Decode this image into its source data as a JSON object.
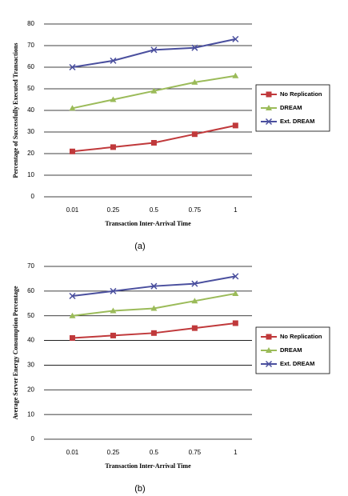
{
  "chart_data": [
    {
      "type": "line",
      "caption": "(a)",
      "x_label": "Transaction Inter-Arrival Time",
      "y_label": "Percentage of Successfully Executed Transactions",
      "categories": [
        "0.01",
        "0.25",
        "0.5",
        "0.75",
        "1"
      ],
      "series": [
        {
          "name": "No Replication",
          "color": "#c0393b",
          "marker": "square",
          "values": [
            21,
            23,
            25,
            29,
            33
          ]
        },
        {
          "name": "DREAM",
          "color": "#9bbb59",
          "marker": "triangle",
          "values": [
            41,
            45,
            49,
            53,
            56
          ]
        },
        {
          "name": "Ext. DREAM",
          "color": "#4a4f9e",
          "marker": "x",
          "values": [
            60,
            63,
            68,
            69,
            73
          ]
        }
      ],
      "ylim": [
        0,
        80
      ],
      "yticks": [
        0,
        10,
        20,
        30,
        40,
        50,
        60,
        70,
        80
      ],
      "grid": true,
      "legend": "right"
    },
    {
      "type": "line",
      "caption": "(b)",
      "x_label": "Transaction Inter-Arrival Time",
      "y_label": "Average Server Energy Consumption Percentage",
      "categories": [
        "0.01",
        "0.25",
        "0.5",
        "0.75",
        "1"
      ],
      "series": [
        {
          "name": "No Replication",
          "color": "#c0393b",
          "marker": "square",
          "values": [
            41,
            42,
            43,
            45,
            47
          ]
        },
        {
          "name": "DREAM",
          "color": "#9bbb59",
          "marker": "triangle",
          "values": [
            50,
            52,
            53,
            56,
            59
          ]
        },
        {
          "name": "Ext. DREAM",
          "color": "#4a4f9e",
          "marker": "x",
          "values": [
            58,
            60,
            62,
            63,
            66
          ]
        }
      ],
      "ylim": [
        0,
        70
      ],
      "yticks": [
        0,
        10,
        20,
        30,
        40,
        50,
        60,
        70
      ],
      "grid": true,
      "legend": "right"
    }
  ]
}
